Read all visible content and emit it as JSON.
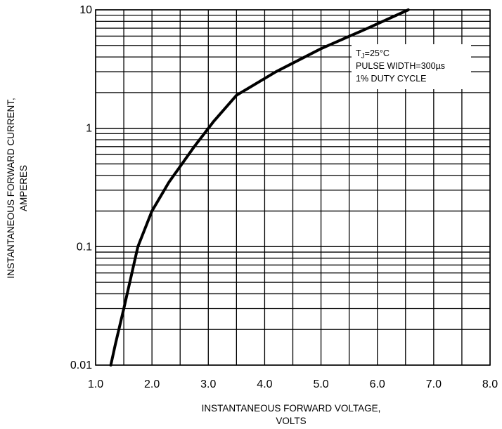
{
  "chart_data": {
    "type": "line",
    "title": "",
    "xlabel_lines": [
      "INSTANTANEOUS FORWARD VOLTAGE,",
      "VOLTS"
    ],
    "ylabel_lines": [
      "INSTANTANEOUS FORWARD CURRENT,",
      "AMPERES"
    ],
    "x_scale": "linear",
    "y_scale": "log",
    "xlim": [
      1.0,
      8.0
    ],
    "ylim": [
      0.01,
      10
    ],
    "grid": true,
    "x_ticks": [
      {
        "value": 1.0,
        "label": "1.0"
      },
      {
        "value": 2.0,
        "label": "2.0"
      },
      {
        "value": 3.0,
        "label": "3.0"
      },
      {
        "value": 4.0,
        "label": "4.0"
      },
      {
        "value": 5.0,
        "label": "5.0"
      },
      {
        "value": 6.0,
        "label": "6.0"
      },
      {
        "value": 7.0,
        "label": "7.0"
      },
      {
        "value": 8.0,
        "label": "8.0"
      }
    ],
    "y_ticks": [
      {
        "value": 0.01,
        "label": "0.01"
      },
      {
        "value": 0.1,
        "label": "0.1"
      },
      {
        "value": 1,
        "label": "1"
      },
      {
        "value": 10,
        "label": "10"
      }
    ],
    "annotation": {
      "lines": [
        "T",
        "PULSE WIDTH=300µs",
        "1% DUTY CYCLE"
      ],
      "tj_subscript": "J",
      "tj_value": "=25°C",
      "placement": "upper-right"
    },
    "series": [
      {
        "x": [
          1.27,
          1.35,
          1.5,
          1.75,
          2.0,
          2.3,
          2.75,
          3.1,
          3.5,
          4.2,
          5.0,
          5.8,
          6.55
        ],
        "y": [
          0.01,
          0.015,
          0.03,
          0.1,
          0.2,
          0.35,
          0.7,
          1.15,
          1.9,
          3.0,
          4.7,
          6.9,
          10.0
        ]
      }
    ]
  }
}
